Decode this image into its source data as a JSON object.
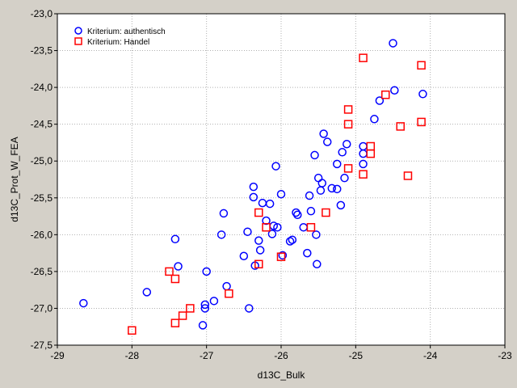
{
  "chart_data": {
    "type": "scatter",
    "title": "",
    "xlabel": "d13C_Bulk",
    "ylabel": "d13C_Prot_W_FEA",
    "xlim": [
      -29,
      -23
    ],
    "ylim": [
      -27.5,
      -23.0
    ],
    "xticks": [
      "-29",
      "-28",
      "-27",
      "-26",
      "-25",
      "-24",
      "-23"
    ],
    "yticks": [
      "-23,0",
      "-23,5",
      "-24,0",
      "-24,5",
      "-25,0",
      "-25,5",
      "-26,0",
      "-26,5",
      "-27,0",
      "-27,5"
    ],
    "grid": true,
    "legend_position": "top-left",
    "background": "#d4d0c8",
    "plot_background": "#ffffff",
    "series": [
      {
        "name": "Kriterium: authentisch",
        "marker": "circle",
        "color": "#0000ff",
        "points": [
          [
            -28.65,
            -26.93
          ],
          [
            -27.8,
            -26.78
          ],
          [
            -27.42,
            -26.06
          ],
          [
            -27.38,
            -26.43
          ],
          [
            -27.05,
            -27.23
          ],
          [
            -27.02,
            -26.95
          ],
          [
            -27.02,
            -27.0
          ],
          [
            -27.0,
            -26.5
          ],
          [
            -26.9,
            -26.9
          ],
          [
            -26.8,
            -26.0
          ],
          [
            -26.77,
            -25.71
          ],
          [
            -26.73,
            -26.7
          ],
          [
            -26.5,
            -26.29
          ],
          [
            -26.45,
            -25.96
          ],
          [
            -26.43,
            -27.0
          ],
          [
            -26.37,
            -25.35
          ],
          [
            -26.37,
            -25.49
          ],
          [
            -26.35,
            -26.42
          ],
          [
            -26.3,
            -26.08
          ],
          [
            -26.28,
            -26.21
          ],
          [
            -26.25,
            -25.57
          ],
          [
            -26.2,
            -25.81
          ],
          [
            -26.15,
            -25.58
          ],
          [
            -26.12,
            -25.99
          ],
          [
            -26.1,
            -25.88
          ],
          [
            -26.07,
            -25.07
          ],
          [
            -26.05,
            -25.9
          ],
          [
            -26.0,
            -25.45
          ],
          [
            -25.98,
            -26.28
          ],
          [
            -25.88,
            -26.09
          ],
          [
            -25.85,
            -26.07
          ],
          [
            -25.8,
            -25.7
          ],
          [
            -25.78,
            -25.73
          ],
          [
            -25.7,
            -25.9
          ],
          [
            -25.65,
            -26.25
          ],
          [
            -25.62,
            -25.47
          ],
          [
            -25.6,
            -25.68
          ],
          [
            -25.55,
            -24.92
          ],
          [
            -25.53,
            -26.0
          ],
          [
            -25.52,
            -26.4
          ],
          [
            -25.5,
            -25.23
          ],
          [
            -25.47,
            -25.4
          ],
          [
            -25.45,
            -25.3
          ],
          [
            -25.43,
            -24.63
          ],
          [
            -25.38,
            -24.74
          ],
          [
            -25.32,
            -25.37
          ],
          [
            -25.25,
            -25.38
          ],
          [
            -25.25,
            -25.04
          ],
          [
            -25.2,
            -25.6
          ],
          [
            -25.18,
            -24.88
          ],
          [
            -25.15,
            -25.23
          ],
          [
            -25.12,
            -24.77
          ],
          [
            -24.9,
            -24.8
          ],
          [
            -24.9,
            -24.9
          ],
          [
            -24.9,
            -25.04
          ],
          [
            -24.75,
            -24.43
          ],
          [
            -24.68,
            -24.18
          ],
          [
            -24.5,
            -23.4
          ],
          [
            -24.48,
            -24.04
          ],
          [
            -24.1,
            -24.09
          ]
        ]
      },
      {
        "name": "Kriterium: Handel",
        "marker": "square",
        "color": "#ff0000",
        "points": [
          [
            -28.0,
            -27.3
          ],
          [
            -27.5,
            -26.5
          ],
          [
            -27.42,
            -26.6
          ],
          [
            -27.42,
            -27.2
          ],
          [
            -27.32,
            -27.1
          ],
          [
            -27.22,
            -27.0
          ],
          [
            -26.7,
            -26.8
          ],
          [
            -26.3,
            -26.4
          ],
          [
            -26.3,
            -25.7
          ],
          [
            -26.2,
            -25.9
          ],
          [
            -26.0,
            -26.3
          ],
          [
            -25.6,
            -25.9
          ],
          [
            -25.4,
            -25.7
          ],
          [
            -25.1,
            -24.3
          ],
          [
            -25.1,
            -24.5
          ],
          [
            -25.1,
            -25.1
          ],
          [
            -24.9,
            -23.6
          ],
          [
            -24.9,
            -25.18
          ],
          [
            -24.8,
            -24.8
          ],
          [
            -24.8,
            -24.9
          ],
          [
            -24.6,
            -24.1
          ],
          [
            -24.4,
            -24.53
          ],
          [
            -24.3,
            -25.2
          ],
          [
            -24.12,
            -23.7
          ],
          [
            -24.12,
            -24.47
          ]
        ]
      }
    ]
  }
}
